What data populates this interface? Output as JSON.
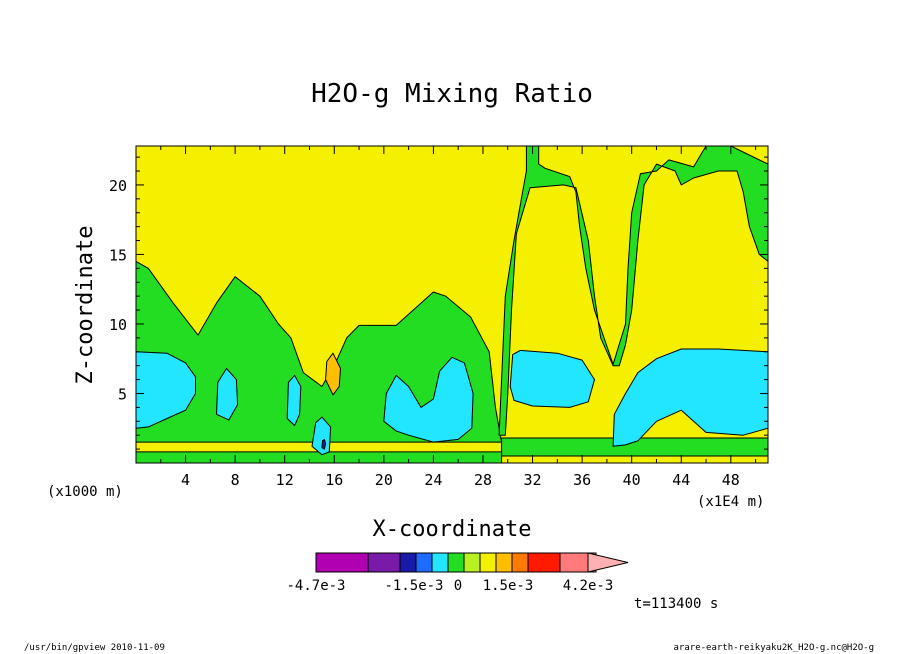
{
  "chart_data": {
    "type": "contour",
    "title": "H2O-g Mixing Ratio",
    "xlabel": "X-coordinate",
    "ylabel": "Z-coordinate",
    "x_units_left": "(x1000 m)",
    "x_units_right": "(x1E4 m)",
    "x_ticks": [
      "4",
      "8",
      "12",
      "16",
      "20",
      "24",
      "28",
      "32",
      "36",
      "40",
      "44",
      "48"
    ],
    "y_ticks": [
      "5",
      "10",
      "15",
      "20"
    ],
    "xlim": [
      0,
      51
    ],
    "ylim": [
      0,
      22.8
    ],
    "levels_colors": [
      "#b000b0",
      "#7a1aa8",
      "#1a1aa8",
      "#1f6bff",
      "#22e6ff",
      "#22dd22",
      "#b8f020",
      "#f5f000",
      "#ffbf00",
      "#ff7a00",
      "#ff1a00",
      "#ff7a7a",
      "#ffb0b0"
    ],
    "legend_labels": [
      "-4.7e-3",
      "-1.5e-3",
      "0",
      "1.5e-3",
      "4.2e-3"
    ],
    "time_label": "t=113400 s",
    "regions": [
      {
        "level": "green",
        "points": [
          [
            0,
            1.5
          ],
          [
            0,
            14.5
          ],
          [
            1,
            14
          ],
          [
            3,
            11.5
          ],
          [
            5,
            9.2
          ],
          [
            6.5,
            11.5
          ],
          [
            8,
            13.4
          ],
          [
            10,
            12
          ],
          [
            11.5,
            10
          ],
          [
            12.5,
            9
          ],
          [
            13.5,
            6.5
          ],
          [
            15,
            5.5
          ],
          [
            16,
            7
          ],
          [
            17,
            9
          ],
          [
            18,
            9.9
          ],
          [
            21,
            9.9
          ],
          [
            23,
            11.5
          ],
          [
            24,
            12.3
          ],
          [
            25,
            12
          ],
          [
            27,
            10.5
          ],
          [
            28.5,
            8
          ],
          [
            29,
            4
          ],
          [
            29.5,
            1.5
          ]
        ]
      },
      {
        "level": "green",
        "points": [
          [
            29.3,
            2
          ],
          [
            29.8,
            12
          ],
          [
            30.5,
            16
          ],
          [
            31.2,
            19.5
          ],
          [
            31.5,
            21
          ],
          [
            31.5,
            22.8
          ],
          [
            32.5,
            22.8
          ],
          [
            32.5,
            21.5
          ],
          [
            33,
            21.2
          ],
          [
            35,
            20.6
          ],
          [
            35.5,
            19.5
          ],
          [
            35.8,
            17
          ],
          [
            36.3,
            14
          ],
          [
            37,
            11
          ],
          [
            38.5,
            7.1
          ],
          [
            39.5,
            10
          ],
          [
            39.7,
            14
          ],
          [
            40,
            18
          ],
          [
            40.7,
            20.8
          ],
          [
            42,
            21
          ],
          [
            43,
            21.8
          ],
          [
            45,
            21.3
          ],
          [
            46,
            22.8
          ],
          [
            48,
            22.8
          ],
          [
            51,
            21.5
          ],
          [
            51,
            14.5
          ],
          [
            50.3,
            15
          ],
          [
            49.5,
            17
          ],
          [
            49,
            19.5
          ],
          [
            48.5,
            21
          ],
          [
            47,
            21
          ],
          [
            45,
            20.5
          ],
          [
            44,
            20
          ],
          [
            43.5,
            21
          ],
          [
            42,
            21.5
          ],
          [
            41,
            20
          ],
          [
            40.5,
            16
          ],
          [
            40,
            11
          ],
          [
            39.5,
            8.5
          ],
          [
            39,
            7
          ],
          [
            38.5,
            7
          ],
          [
            37.5,
            9
          ],
          [
            37,
            12
          ],
          [
            36.5,
            16
          ],
          [
            35.5,
            19.8
          ],
          [
            34.5,
            20
          ],
          [
            31.8,
            19.8
          ],
          [
            30.7,
            16.5
          ],
          [
            30.3,
            11
          ],
          [
            30,
            5
          ],
          [
            29.8,
            2
          ]
        ]
      },
      {
        "level": "green",
        "points": [
          [
            29.5,
            1.8
          ],
          [
            51,
            1.8
          ],
          [
            51,
            0.5
          ],
          [
            29.5,
            0.5
          ]
        ]
      },
      {
        "level": "green",
        "points": [
          [
            0,
            0.8
          ],
          [
            29.5,
            0.8
          ],
          [
            29.5,
            0
          ],
          [
            0,
            0
          ]
        ]
      },
      {
        "level": "cyan",
        "points": [
          [
            0,
            2.5
          ],
          [
            0,
            8
          ],
          [
            2.5,
            7.9
          ],
          [
            4,
            7.2
          ],
          [
            4.8,
            6.2
          ],
          [
            4.8,
            5
          ],
          [
            4,
            3.8
          ],
          [
            2.5,
            3.2
          ],
          [
            1,
            2.6
          ]
        ]
      },
      {
        "level": "cyan",
        "points": [
          [
            6.5,
            3.5
          ],
          [
            6.6,
            5.8
          ],
          [
            7.3,
            6.8
          ],
          [
            8.1,
            6
          ],
          [
            8.2,
            4.2
          ],
          [
            7.5,
            3.1
          ]
        ]
      },
      {
        "level": "cyan",
        "points": [
          [
            12.2,
            3.2
          ],
          [
            12.3,
            5.8
          ],
          [
            12.8,
            6.3
          ],
          [
            13.3,
            5.5
          ],
          [
            13.2,
            3.5
          ],
          [
            12.8,
            2.7
          ]
        ]
      },
      {
        "level": "cyan",
        "points": [
          [
            14.2,
            1.2
          ],
          [
            14.5,
            2.9
          ],
          [
            15,
            3.3
          ],
          [
            15.7,
            2.6
          ],
          [
            15.6,
            0.8
          ],
          [
            15,
            0.6
          ]
        ]
      },
      {
        "level": "cyan",
        "points": [
          [
            20,
            3
          ],
          [
            20.2,
            5
          ],
          [
            21,
            6.3
          ],
          [
            22,
            5.5
          ],
          [
            23,
            4
          ],
          [
            24,
            4.6
          ],
          [
            24.5,
            6.6
          ],
          [
            25.5,
            7.6
          ],
          [
            26.5,
            7.2
          ],
          [
            27.2,
            5
          ],
          [
            27.1,
            2.5
          ],
          [
            26,
            1.7
          ],
          [
            24,
            1.5
          ],
          [
            22,
            2
          ],
          [
            21,
            2.3
          ]
        ]
      },
      {
        "level": "cyan",
        "points": [
          [
            30.2,
            5.5
          ],
          [
            30.4,
            7.8
          ],
          [
            31,
            8.1
          ],
          [
            34,
            7.9
          ],
          [
            36,
            7.4
          ],
          [
            37,
            6
          ],
          [
            36.5,
            4.4
          ],
          [
            35,
            4
          ],
          [
            32,
            4.1
          ],
          [
            30.5,
            4.5
          ]
        ]
      },
      {
        "level": "cyan",
        "points": [
          [
            38.5,
            1.2
          ],
          [
            38.6,
            3.5
          ],
          [
            39.5,
            5
          ],
          [
            40.5,
            6.5
          ],
          [
            42,
            7.5
          ],
          [
            44,
            8.2
          ],
          [
            47,
            8.2
          ],
          [
            51,
            8
          ],
          [
            51,
            2.5
          ],
          [
            49,
            2
          ],
          [
            46,
            2.2
          ],
          [
            44,
            3.8
          ],
          [
            42,
            3
          ],
          [
            40.5,
            1.6
          ],
          [
            39.5,
            1.3
          ]
        ]
      },
      {
        "level": "orange",
        "points": [
          [
            15.3,
            6
          ],
          [
            15.4,
            7.3
          ],
          [
            15.9,
            7.9
          ],
          [
            16.5,
            6.8
          ],
          [
            16.4,
            5.5
          ],
          [
            15.9,
            4.9
          ]
        ]
      },
      {
        "level": "blue",
        "points": [
          [
            15,
            1.1
          ],
          [
            15.05,
            1.6
          ],
          [
            15.2,
            1.7
          ],
          [
            15.3,
            1.4
          ],
          [
            15.2,
            1.0
          ]
        ]
      }
    ]
  },
  "footer": {
    "left": "/usr/bin/gpview  2010-11-09",
    "right": "arare-earth-reikyaku2K_H2O-g.nc@H2O-g"
  }
}
